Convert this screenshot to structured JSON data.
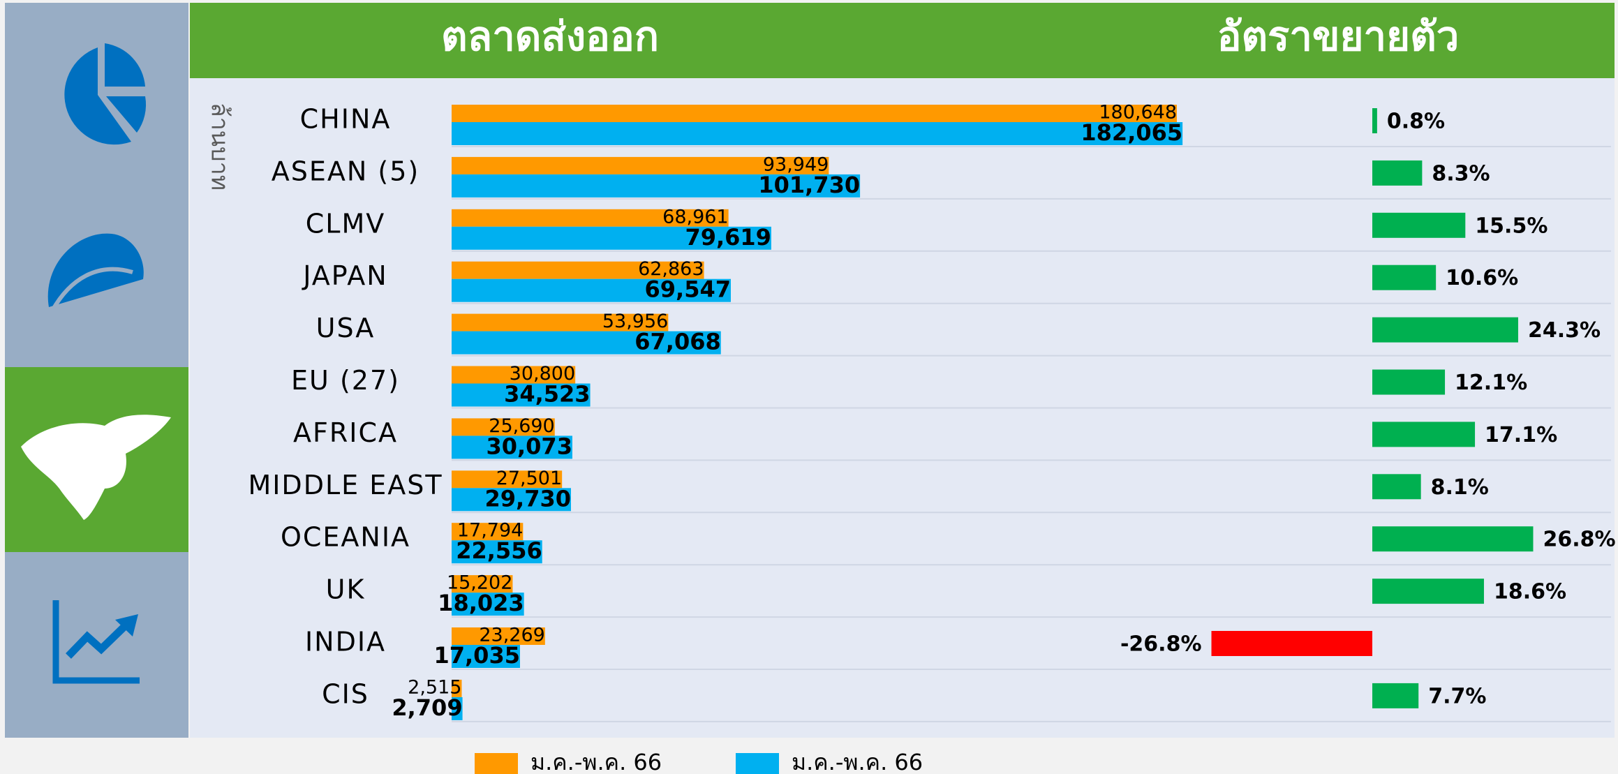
{
  "header": {
    "title_left": "ตลาดส่งออก",
    "title_right": "อัตราขยายตัว"
  },
  "chart_data": {
    "type": "bar",
    "orientation": "horizontal",
    "y_axis_label": "ล้านบาท",
    "categories": [
      "CHINA",
      "ASEAN (5)",
      "CLMV",
      "JAPAN",
      "USA",
      "EU (27)",
      "AFRICA",
      "MIDDLE EAST",
      "OCEANIA",
      "UK",
      "INDIA",
      "CIS"
    ],
    "series": [
      {
        "name": "ม.ค.-พ.ค. 66",
        "color": "#ff9900",
        "values": [
          180648,
          93949,
          68961,
          62863,
          53956,
          30800,
          25690,
          27501,
          17794,
          15202,
          23269,
          2515
        ],
        "value_labels": [
          "180,648",
          "93,949",
          "68,961",
          "62,863",
          "53,956",
          "30,800",
          "25,690",
          "27,501",
          "17,794",
          "15,202",
          "23,269",
          "2,515"
        ]
      },
      {
        "name": "ม.ค.-พ.ค. 66",
        "color": "#00b0f0",
        "values": [
          182065,
          101730,
          79619,
          69547,
          67068,
          34523,
          30073,
          29730,
          22556,
          18023,
          17035,
          2709
        ],
        "value_labels": [
          "182,065",
          "101,730",
          "79,619",
          "69,547",
          "67,068",
          "34,523",
          "30,073",
          "29,730",
          "22,556",
          "18,023",
          "17,035",
          "2,709"
        ]
      }
    ],
    "growth": {
      "color_positive": "#00b050",
      "color_negative": "#ff0000",
      "values": [
        0.8,
        8.3,
        15.5,
        10.6,
        24.3,
        12.1,
        17.1,
        8.1,
        26.8,
        18.6,
        -26.8,
        7.7
      ],
      "value_labels": [
        "0.8%",
        "8.3%",
        "15.5%",
        "10.6%",
        "24.3%",
        "12.1%",
        "17.1%",
        "8.1%",
        "26.8%",
        "18.6%",
        "-26.8%",
        "7.7%"
      ]
    }
  }
}
